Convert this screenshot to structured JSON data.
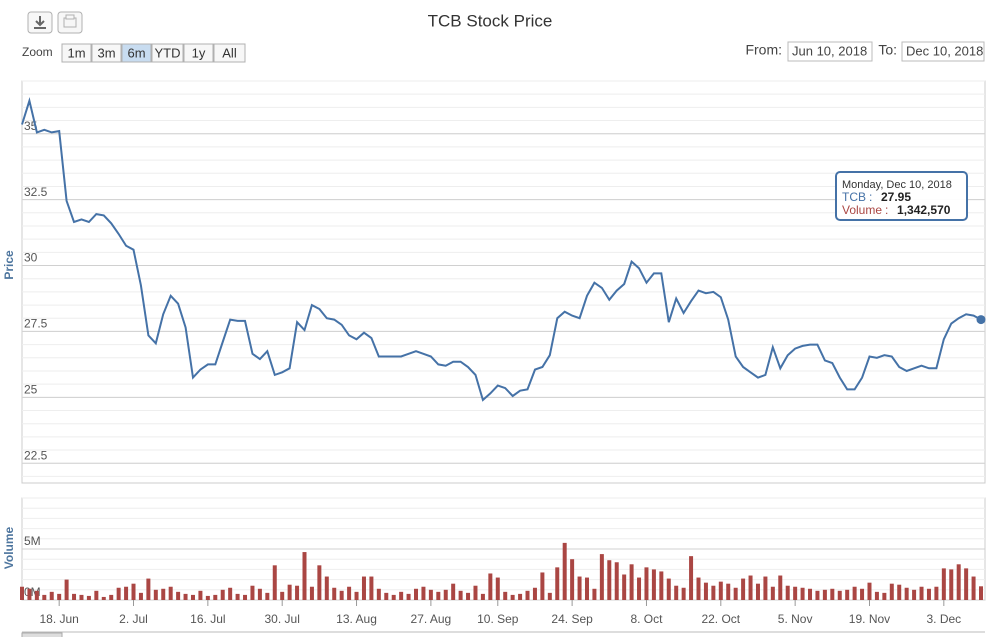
{
  "chart_data": {
    "type": "stock",
    "title": "TCB Stock Price",
    "categories": [
      null,
      null,
      null,
      null,
      null,
      "18. Jun",
      null,
      null,
      null,
      null,
      null,
      null,
      null,
      null,
      null,
      "2. Jul",
      null,
      null,
      null,
      null,
      null,
      null,
      null,
      null,
      null,
      "16. Jul",
      null,
      null,
      null,
      null,
      null,
      null,
      null,
      null,
      null,
      "30. Jul",
      null,
      null,
      null,
      null,
      null,
      null,
      null,
      null,
      null,
      "13. Aug",
      null,
      null,
      null,
      null,
      null,
      null,
      null,
      null,
      null,
      "27. Aug",
      null,
      null,
      null,
      null,
      null,
      null,
      null,
      null,
      "10. Sep",
      null,
      null,
      null,
      null,
      null,
      null,
      null,
      null,
      null,
      "24. Sep",
      null,
      null,
      null,
      null,
      null,
      null,
      null,
      null,
      null,
      "8. Oct",
      null,
      null,
      null,
      null,
      null,
      null,
      null,
      null,
      null,
      "22. Oct",
      null,
      null,
      null,
      null,
      null,
      null,
      null,
      null,
      null,
      "5. Nov",
      null,
      null,
      null,
      null,
      null,
      null,
      null,
      null,
      null,
      "19. Nov",
      null,
      null,
      null,
      null,
      null,
      null,
      null,
      null,
      null,
      "3. Dec",
      null,
      null,
      null,
      null,
      null
    ],
    "series": [
      {
        "name": "TCB",
        "color": "#4572a7",
        "values": [
          35.35,
          36.25,
          35.05,
          35.15,
          35.05,
          35.1,
          32.45,
          31.65,
          31.75,
          31.65,
          31.95,
          31.9,
          31.6,
          31.2,
          30.75,
          30.6,
          29.25,
          27.35,
          27.05,
          28.15,
          28.85,
          28.55,
          27.65,
          25.75,
          26.05,
          26.25,
          26.25,
          27.1,
          27.95,
          27.9,
          27.9,
          26.65,
          26.45,
          26.75,
          25.85,
          25.95,
          26.1,
          27.85,
          27.55,
          28.5,
          28.35,
          28.0,
          27.95,
          27.75,
          27.35,
          27.2,
          27.45,
          27.25,
          26.55,
          26.55,
          26.55,
          26.55,
          26.65,
          26.75,
          26.65,
          26.55,
          26.25,
          26.2,
          26.35,
          26.35,
          26.15,
          25.85,
          24.9,
          25.15,
          25.45,
          25.35,
          25.05,
          25.25,
          25.3,
          26.05,
          26.15,
          26.6,
          28.0,
          28.25,
          28.1,
          28.0,
          28.85,
          29.35,
          29.15,
          28.7,
          29.05,
          29.3,
          30.15,
          29.9,
          29.35,
          29.7,
          29.7,
          27.85,
          28.75,
          28.2,
          28.65,
          29.05,
          28.95,
          29.0,
          28.8,
          27.95,
          26.55,
          26.15,
          25.95,
          25.75,
          25.85,
          26.9,
          26.1,
          26.6,
          26.85,
          26.95,
          27.0,
          27.0,
          26.4,
          26.3,
          25.75,
          25.3,
          25.3,
          25.75,
          26.55,
          26.5,
          26.6,
          26.55,
          26.15,
          26.0,
          26.1,
          26.2,
          26.1,
          26.1,
          27.2,
          27.8,
          28.0,
          28.15,
          28.1,
          27.95
        ]
      },
      {
        "name": "Volume",
        "color": "#aa4643",
        "axis": "y2",
        "values": [
          1300000,
          1100000,
          900000,
          500000,
          800000,
          600000,
          2000000,
          600000,
          500000,
          400000,
          900000,
          300000,
          500000,
          1200000,
          1300000,
          1600000,
          700000,
          2100000,
          1000000,
          1100000,
          1300000,
          800000,
          600000,
          500000,
          900000,
          400000,
          500000,
          1000000,
          1200000,
          600000,
          500000,
          1400000,
          1100000,
          700000,
          3400000,
          800000,
          1500000,
          1400000,
          4700000,
          1300000,
          3400000,
          2300000,
          1200000,
          900000,
          1300000,
          800000,
          2300000,
          2300000,
          1100000,
          700000,
          500000,
          800000,
          600000,
          1100000,
          1300000,
          1000000,
          800000,
          1000000,
          1600000,
          900000,
          700000,
          1400000,
          600000,
          2600000,
          2200000,
          800000,
          500000,
          600000,
          900000,
          1200000,
          2700000,
          700000,
          3200000,
          5600000,
          4000000,
          2300000,
          2200000,
          1100000,
          4500000,
          3900000,
          3700000,
          2500000,
          3500000,
          2200000,
          3200000,
          3000000,
          2800000,
          2100000,
          1400000,
          1200000,
          4300000,
          2200000,
          1700000,
          1400000,
          1800000,
          1600000,
          1200000,
          2100000,
          2400000,
          1600000,
          2300000,
          1300000,
          2400000,
          1400000,
          1300000,
          1200000,
          1100000,
          900000,
          1000000,
          1100000,
          900000,
          1000000,
          1300000,
          1100000,
          1700000,
          800000,
          700000,
          1600000,
          1500000,
          1200000,
          1000000,
          1300000,
          1100000,
          1300000,
          3100000,
          3000000,
          3500000,
          3100000,
          2300000,
          1342570
        ],
        "value_labels": [
          null,
          null,
          null,
          null,
          null,
          null,
          null,
          null,
          null,
          null,
          null,
          null,
          null,
          null,
          null,
          null,
          null,
          null,
          null,
          null,
          null,
          null,
          null,
          null,
          null,
          null,
          null,
          null,
          null,
          null,
          null,
          null,
          null,
          null,
          null,
          null,
          null,
          null,
          null,
          null,
          null,
          null,
          null,
          null,
          null,
          null,
          null,
          null,
          null,
          null,
          null,
          null,
          null,
          null,
          null,
          null,
          null,
          null,
          null,
          null,
          null,
          null,
          null,
          null,
          null,
          null,
          null,
          null,
          null,
          null,
          null,
          null,
          null,
          null,
          null,
          null,
          null,
          null,
          null,
          null,
          null,
          null,
          null,
          null,
          null,
          null,
          null,
          null,
          null,
          null,
          null,
          null,
          null,
          null,
          null,
          null,
          null,
          null,
          null,
          null,
          null,
          null,
          null,
          null,
          null,
          null,
          null,
          null,
          null,
          null,
          null,
          null,
          null,
          null,
          null,
          null,
          null,
          null,
          null,
          null,
          null,
          null,
          null,
          null,
          null,
          null,
          null,
          null,
          null,
          "1,342,570"
        ]
      }
    ],
    "ylabel": "Price",
    "ylim": [
      21.75,
      37
    ],
    "yticks": [
      22.5,
      25,
      27.5,
      30,
      32.5,
      35
    ],
    "y2label": "Volume",
    "y2lim": [
      0,
      10000000
    ],
    "y2ticks": [
      {
        "value": 0,
        "label": "0M"
      },
      {
        "value": 5000000,
        "label": "5M"
      }
    ],
    "grid": true,
    "tooltip": {
      "header": "Monday, Dec 10, 2018",
      "separator": ":"
    }
  },
  "range_selector": {
    "zoom_label": "Zoom",
    "buttons": [
      "1m",
      "3m",
      "6m",
      "YTD",
      "1y",
      "All"
    ],
    "selected": 2,
    "from_label": "From:",
    "from": "Jun 10, 2018",
    "to_label": "To:",
    "to": "Dec 10, 2018"
  }
}
